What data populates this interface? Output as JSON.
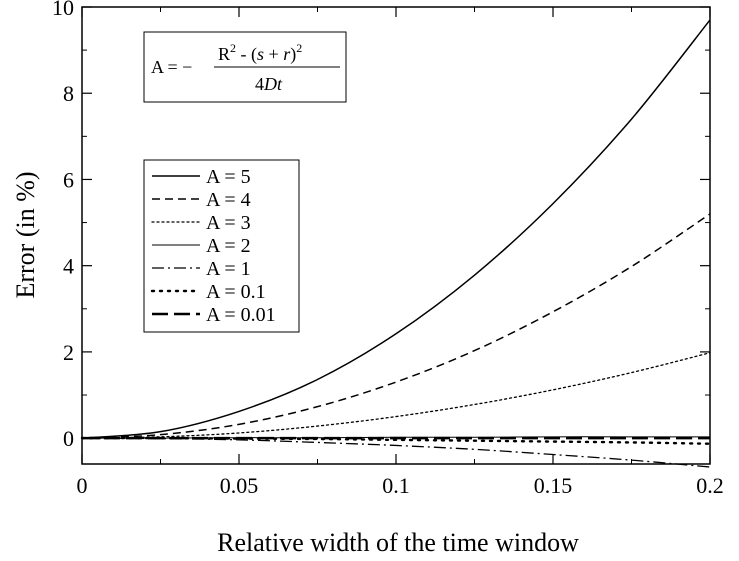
{
  "chart_data": {
    "type": "line",
    "title": "",
    "xlabel": "Relative width of the time window",
    "ylabel": "Error (in %)",
    "xlim": [
      0,
      0.2
    ],
    "ylim": [
      -0.6,
      10
    ],
    "xticks": [
      0,
      0.05,
      0.1,
      0.15,
      0.2
    ],
    "xtick_labels": [
      "0",
      "0.05",
      "0.1",
      "0.15",
      "0.2"
    ],
    "yticks": [
      0,
      2,
      4,
      6,
      8,
      10
    ],
    "ytick_labels": [
      "0",
      "2",
      "4",
      "6",
      "8",
      "10"
    ],
    "grid": false,
    "legend_position": "middle-left",
    "formula": {
      "lhs": "A = −",
      "numerator_r": "R",
      "numerator_exp": "2",
      "numerator_minus": " - (",
      "numerator_s": "s",
      "numerator_plus": " + ",
      "numerator_rr": "r",
      "numerator_close": ")",
      "numerator_exp2": "2",
      "denominator_num": "4",
      "denominator_d": "D",
      "denominator_t": "t"
    },
    "x": [
      0,
      0.025,
      0.05,
      0.075,
      0.1,
      0.125,
      0.15,
      0.175,
      0.2
    ],
    "series": [
      {
        "name": "A = 5",
        "values": [
          0,
          0.15,
          0.62,
          1.36,
          2.42,
          3.78,
          5.44,
          7.4,
          9.7
        ]
      },
      {
        "name": "A = 4",
        "values": [
          0,
          0.08,
          0.32,
          0.73,
          1.3,
          2.03,
          2.93,
          3.98,
          5.2
        ]
      },
      {
        "name": "A = 3",
        "values": [
          0,
          0.03,
          0.12,
          0.28,
          0.5,
          0.78,
          1.12,
          1.52,
          1.98
        ]
      },
      {
        "name": "A = 2",
        "values": [
          0,
          0.0,
          0.01,
          0.01,
          0.02,
          0.02,
          0.03,
          0.03,
          0.03
        ]
      },
      {
        "name": "A = 1",
        "values": [
          0,
          -0.01,
          -0.04,
          -0.1,
          -0.17,
          -0.26,
          -0.38,
          -0.51,
          -0.67
        ]
      },
      {
        "name": "A = 0.1",
        "values": [
          0,
          0.0,
          -0.01,
          -0.02,
          -0.04,
          -0.06,
          -0.08,
          -0.1,
          -0.13
        ]
      },
      {
        "name": "A = 0.01",
        "values": [
          0,
          0.0,
          0.0,
          0.0,
          0.0,
          0.0,
          0.0,
          0.0,
          0.0
        ]
      }
    ]
  }
}
